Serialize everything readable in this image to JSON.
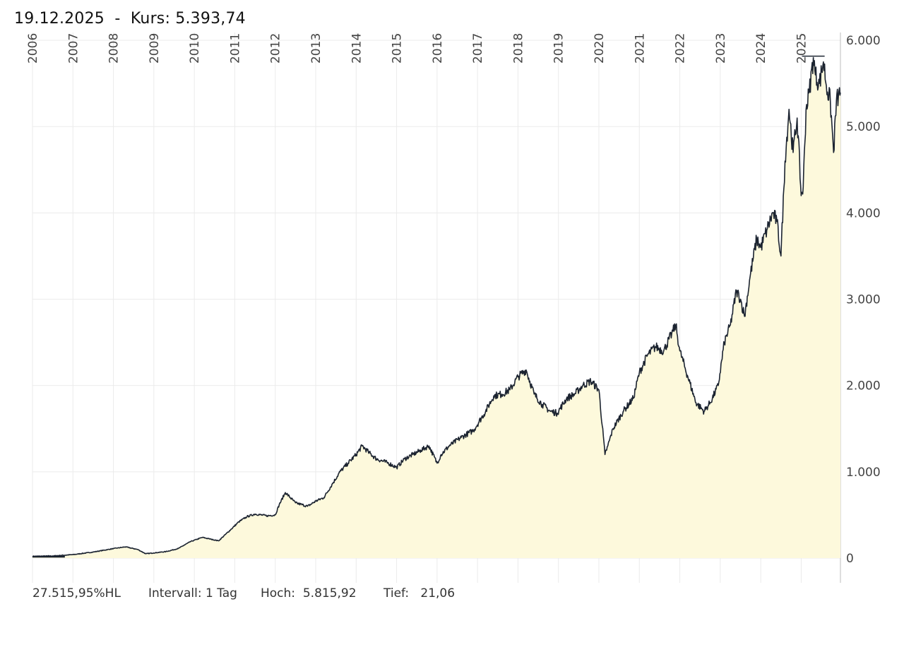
{
  "header": {
    "date": "19.12.2025",
    "separator": "-",
    "price_label": "Kurs:",
    "price_value": "5.393,74"
  },
  "footer": {
    "performance": "27.515,95%HL",
    "interval_label": "Intervall:",
    "interval_value": "1 Tag",
    "high_label": "Hoch:",
    "high_value": "5.815,92",
    "low_label": "Tief:",
    "low_value": "21,06"
  },
  "colors": {
    "line": "#1b2330",
    "fill": "#fdf9dc",
    "grid": "#ebebeb",
    "axis": "#bdbdbd"
  },
  "chart_data": {
    "type": "area",
    "title": "19.12.2025 - Kurs: 5.393,74",
    "xlabel": "",
    "ylabel": "",
    "ylim": [
      0,
      6000
    ],
    "xlim": [
      2006.0,
      2025.97
    ],
    "y_ticks": [
      0,
      1000,
      2000,
      3000,
      4000,
      5000,
      6000
    ],
    "y_tick_labels": [
      "0",
      "1.000",
      "2.000",
      "3.000",
      "4.000",
      "5.000",
      "6.000"
    ],
    "x_ticks": [
      2006,
      2007,
      2008,
      2009,
      2010,
      2011,
      2012,
      2013,
      2014,
      2015,
      2016,
      2017,
      2018,
      2019,
      2020,
      2021,
      2022,
      2023,
      2024,
      2025
    ],
    "x_tick_labels": [
      "2006",
      "2007",
      "2008",
      "2009",
      "2010",
      "2011",
      "2012",
      "2013",
      "2014",
      "2015",
      "2016",
      "2017",
      "2018",
      "2019",
      "2020",
      "2021",
      "2022",
      "2023",
      "2024",
      "2025"
    ],
    "high_marker": 5815.92,
    "grid": true,
    "series": [
      {
        "name": "Kurs",
        "x": [
          2006.0,
          2006.5,
          2007.0,
          2007.5,
          2008.0,
          2008.3,
          2008.6,
          2008.8,
          2009.0,
          2009.3,
          2009.6,
          2009.9,
          2010.2,
          2010.4,
          2010.6,
          2010.9,
          2011.1,
          2011.3,
          2011.5,
          2011.8,
          2012.0,
          2012.1,
          2012.25,
          2012.5,
          2012.8,
          2013.0,
          2013.2,
          2013.4,
          2013.6,
          2013.8,
          2014.0,
          2014.15,
          2014.3,
          2014.5,
          2014.8,
          2015.0,
          2015.2,
          2015.4,
          2015.6,
          2015.8,
          2016.0,
          2016.1,
          2016.3,
          2016.6,
          2016.9,
          2017.2,
          2017.4,
          2017.6,
          2017.8,
          2018.0,
          2018.2,
          2018.4,
          2018.6,
          2018.8,
          2018.97,
          2019.2,
          2019.4,
          2019.6,
          2019.8,
          2020.0,
          2020.15,
          2020.22,
          2020.35,
          2020.6,
          2020.85,
          2021.0,
          2021.2,
          2021.4,
          2021.6,
          2021.8,
          2021.9,
          2022.0,
          2022.2,
          2022.4,
          2022.6,
          2022.75,
          2022.95,
          2023.1,
          2023.25,
          2023.4,
          2023.5,
          2023.6,
          2023.75,
          2023.9,
          2024.0,
          2024.15,
          2024.3,
          2024.4,
          2024.5,
          2024.6,
          2024.7,
          2024.8,
          2024.9,
          2025.0,
          2025.05,
          2025.12,
          2025.2,
          2025.3,
          2025.35,
          2025.45,
          2025.55,
          2025.65,
          2025.72,
          2025.8,
          2025.87,
          2025.92,
          2025.97
        ],
        "values": [
          21,
          25,
          40,
          70,
          110,
          130,
          100,
          50,
          60,
          75,
          110,
          190,
          240,
          220,
          200,
          330,
          420,
          480,
          510,
          490,
          500,
          620,
          760,
          640,
          600,
          660,
          700,
          850,
          1000,
          1100,
          1200,
          1300,
          1230,
          1150,
          1100,
          1050,
          1150,
          1200,
          1250,
          1300,
          1100,
          1200,
          1300,
          1400,
          1480,
          1700,
          1880,
          1900,
          1950,
          2100,
          2180,
          1900,
          1780,
          1700,
          1680,
          1850,
          1900,
          2000,
          2050,
          1950,
          1200,
          1300,
          1500,
          1700,
          1850,
          2150,
          2350,
          2450,
          2400,
          2600,
          2700,
          2400,
          2100,
          1800,
          1700,
          1800,
          2000,
          2500,
          2700,
          3100,
          3000,
          2800,
          3300,
          3700,
          3600,
          3800,
          4000,
          3900,
          3500,
          4600,
          5200,
          4700,
          5100,
          4200,
          4300,
          5200,
          5400,
          5800,
          5600,
          5500,
          5750,
          5400,
          5300,
          4700,
          5300,
          5350,
          5393.74
        ]
      }
    ]
  }
}
